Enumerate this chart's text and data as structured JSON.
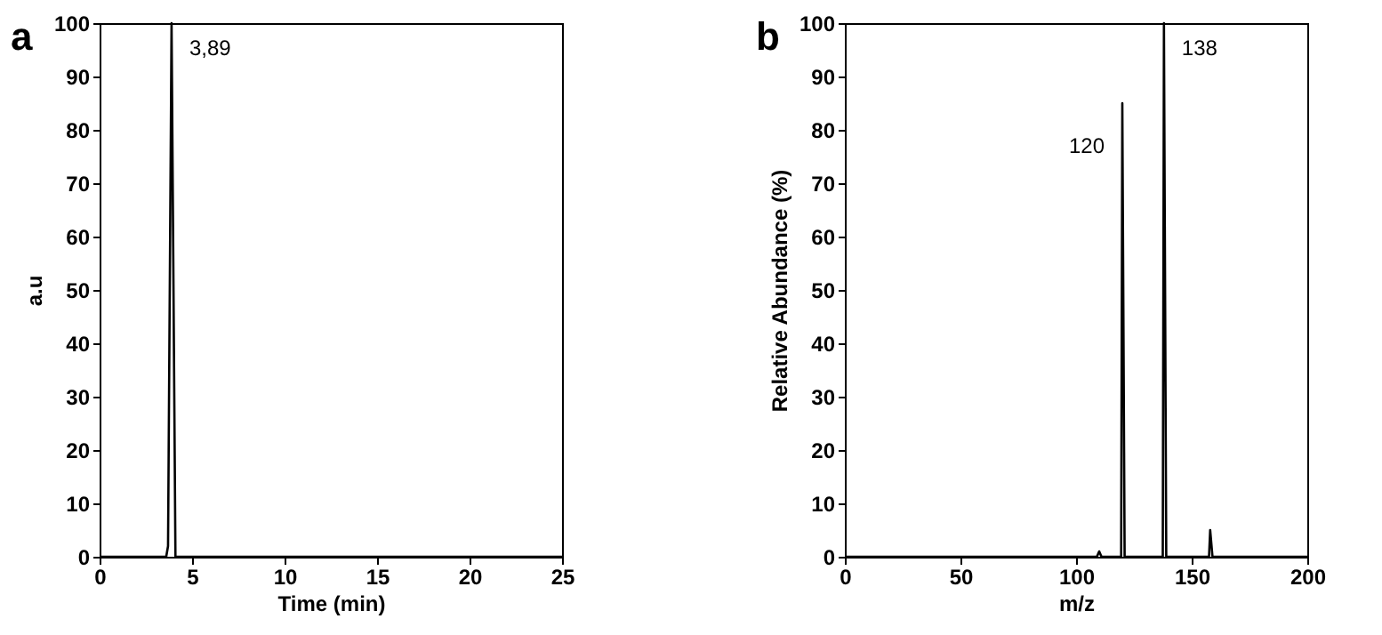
{
  "chart_data": [
    {
      "type": "line",
      "title": "a",
      "xlabel": "Time (min)",
      "ylabel": "a.u",
      "x": [
        0,
        3.6,
        3.7,
        3.89,
        4.1,
        25
      ],
      "series": [
        {
          "color": "#000000",
          "values": [
            0,
            0,
            2,
            100,
            0,
            0
          ]
        }
      ],
      "xlim": [
        0,
        25
      ],
      "xticks": [
        0,
        5,
        10,
        15,
        20,
        25
      ],
      "ylim": [
        0,
        100
      ],
      "yticks": [
        0,
        10,
        20,
        30,
        40,
        50,
        60,
        70,
        80,
        90,
        100
      ],
      "annotations": [
        {
          "text": "3,89",
          "x": 3.89,
          "y": 100
        }
      ]
    },
    {
      "type": "line",
      "title": "b",
      "xlabel": "m/z",
      "ylabel": "Relative Abundance (%)",
      "x": [
        0,
        109,
        110,
        111,
        119.5,
        120,
        121,
        137.5,
        138,
        139,
        157.5,
        158,
        159,
        200
      ],
      "series": [
        {
          "color": "#000000",
          "values": [
            0,
            0,
            1,
            0,
            0,
            85,
            0,
            0,
            100,
            0,
            0,
            5,
            0,
            0
          ]
        }
      ],
      "xlim": [
        0,
        200
      ],
      "xticks": [
        0,
        50,
        100,
        150,
        200
      ],
      "ylim": [
        0,
        100
      ],
      "yticks": [
        0,
        10,
        20,
        30,
        40,
        50,
        60,
        70,
        80,
        90,
        100
      ],
      "annotations": [
        {
          "text": "120",
          "x": 120,
          "y": 85
        },
        {
          "text": "138",
          "x": 138,
          "y": 100
        }
      ]
    }
  ]
}
